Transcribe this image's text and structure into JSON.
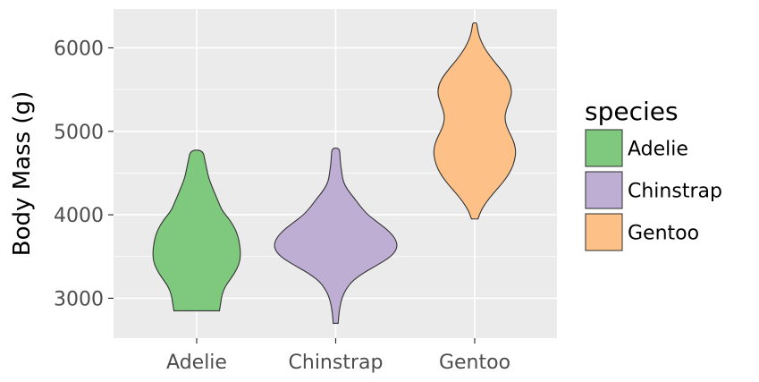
{
  "chart_data": {
    "type": "violin",
    "title": "",
    "xlabel": "",
    "ylabel": "Body Mass (g)",
    "ylim": [
      2500,
      6500
    ],
    "yticks": [
      3000,
      4000,
      5000,
      6000
    ],
    "yticks_text": [
      "3000",
      "4000",
      "5000",
      "6000"
    ],
    "categories": [
      "Adelie",
      "Chinstrap",
      "Gentoo"
    ],
    "legend_title": "species",
    "legend_position": "right",
    "grid": true,
    "colors": {
      "panel": "#EBEBEB",
      "grid": "#FFFFFF",
      "outline": "#333333",
      "Adelie": "#7FC97F",
      "Chinstrap": "#BEAED4",
      "Gentoo": "#FDC086"
    },
    "series": [
      {
        "name": "Adelie",
        "min": 2850,
        "max": 4775,
        "density_profile": [
          [
            2850,
            0.52
          ],
          [
            2950,
            0.55
          ],
          [
            3050,
            0.58
          ],
          [
            3150,
            0.66
          ],
          [
            3250,
            0.8
          ],
          [
            3350,
            0.92
          ],
          [
            3450,
            0.99
          ],
          [
            3550,
            1.0
          ],
          [
            3650,
            0.98
          ],
          [
            3750,
            0.94
          ],
          [
            3850,
            0.86
          ],
          [
            3950,
            0.74
          ],
          [
            4050,
            0.58
          ],
          [
            4150,
            0.5
          ],
          [
            4250,
            0.42
          ],
          [
            4350,
            0.34
          ],
          [
            4450,
            0.27
          ],
          [
            4550,
            0.23
          ],
          [
            4650,
            0.19
          ],
          [
            4775,
            0.14
          ]
        ]
      },
      {
        "name": "Chinstrap",
        "min": 2700,
        "max": 4800,
        "density_profile": [
          [
            2700,
            0.04
          ],
          [
            2800,
            0.05
          ],
          [
            2900,
            0.07
          ],
          [
            3000,
            0.1
          ],
          [
            3100,
            0.16
          ],
          [
            3200,
            0.26
          ],
          [
            3300,
            0.44
          ],
          [
            3400,
            0.68
          ],
          [
            3500,
            0.9
          ],
          [
            3600,
            1.0
          ],
          [
            3700,
            0.98
          ],
          [
            3800,
            0.87
          ],
          [
            3900,
            0.7
          ],
          [
            4000,
            0.52
          ],
          [
            4100,
            0.4
          ],
          [
            4200,
            0.3
          ],
          [
            4300,
            0.19
          ],
          [
            4400,
            0.12
          ],
          [
            4500,
            0.1
          ],
          [
            4600,
            0.08
          ],
          [
            4700,
            0.07
          ],
          [
            4800,
            0.06
          ]
        ]
      },
      {
        "name": "Gentoo",
        "min": 3950,
        "max": 6300,
        "density_profile": [
          [
            3950,
            0.08
          ],
          [
            4050,
            0.15
          ],
          [
            4150,
            0.28
          ],
          [
            4250,
            0.44
          ],
          [
            4350,
            0.62
          ],
          [
            4450,
            0.78
          ],
          [
            4550,
            0.9
          ],
          [
            4650,
            0.97
          ],
          [
            4750,
            1.0
          ],
          [
            4850,
            0.97
          ],
          [
            4950,
            0.88
          ],
          [
            5050,
            0.78
          ],
          [
            5150,
            0.73
          ],
          [
            5250,
            0.76
          ],
          [
            5350,
            0.84
          ],
          [
            5450,
            0.9
          ],
          [
            5550,
            0.88
          ],
          [
            5650,
            0.78
          ],
          [
            5750,
            0.62
          ],
          [
            5850,
            0.45
          ],
          [
            5950,
            0.3
          ],
          [
            6050,
            0.18
          ],
          [
            6150,
            0.1
          ],
          [
            6250,
            0.06
          ],
          [
            6300,
            0.05
          ]
        ]
      }
    ]
  }
}
